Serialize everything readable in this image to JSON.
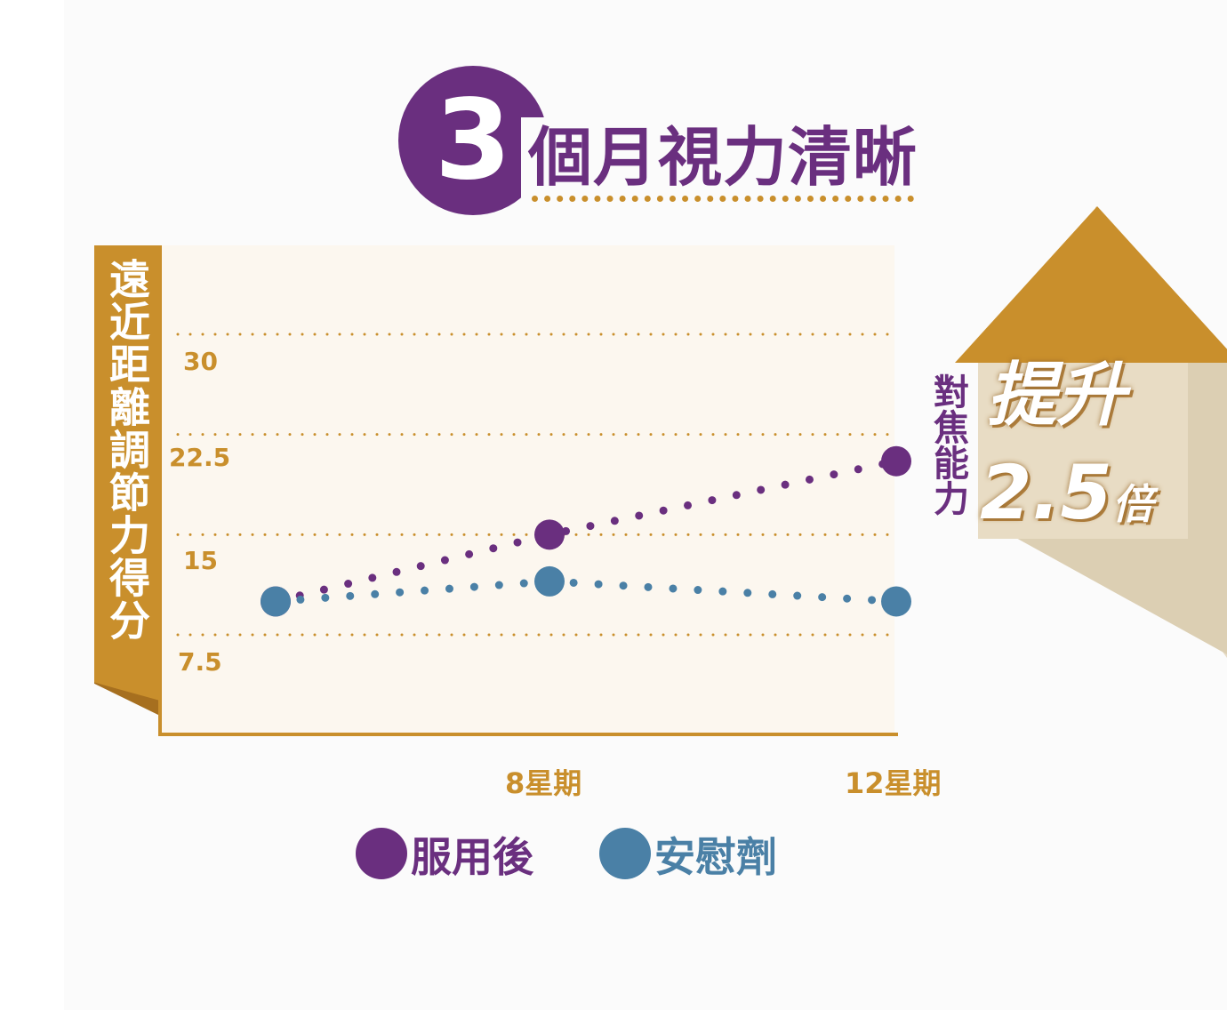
{
  "title": {
    "number": "3",
    "text": "個月視力清晰"
  },
  "callout": {
    "side_text": "對焦能力",
    "main_text": "提升",
    "value_text": "2.5",
    "suffix_text": "倍"
  },
  "legend": [
    {
      "label": "服用後",
      "color": "#6a2f7f"
    },
    {
      "label": "安慰劑",
      "color": "#4a80a6"
    }
  ],
  "colors": {
    "accent": "#c98f2c",
    "purple": "#6a2f7f",
    "blue": "#4a80a6"
  },
  "chart_data": {
    "type": "line",
    "ylabel": "遠近距離調節力得分",
    "x": [
      "",
      "8星期",
      "12星期"
    ],
    "yticks": [
      "7.5",
      "15",
      "22.5",
      "30"
    ],
    "ylim": [
      0,
      37.5
    ],
    "grid": true,
    "line_style": "dotted",
    "series": [
      {
        "name": "服用後",
        "values": [
          10,
          15,
          20.5
        ]
      },
      {
        "name": "安慰劑",
        "values": [
          10,
          11.5,
          10
        ]
      }
    ]
  }
}
